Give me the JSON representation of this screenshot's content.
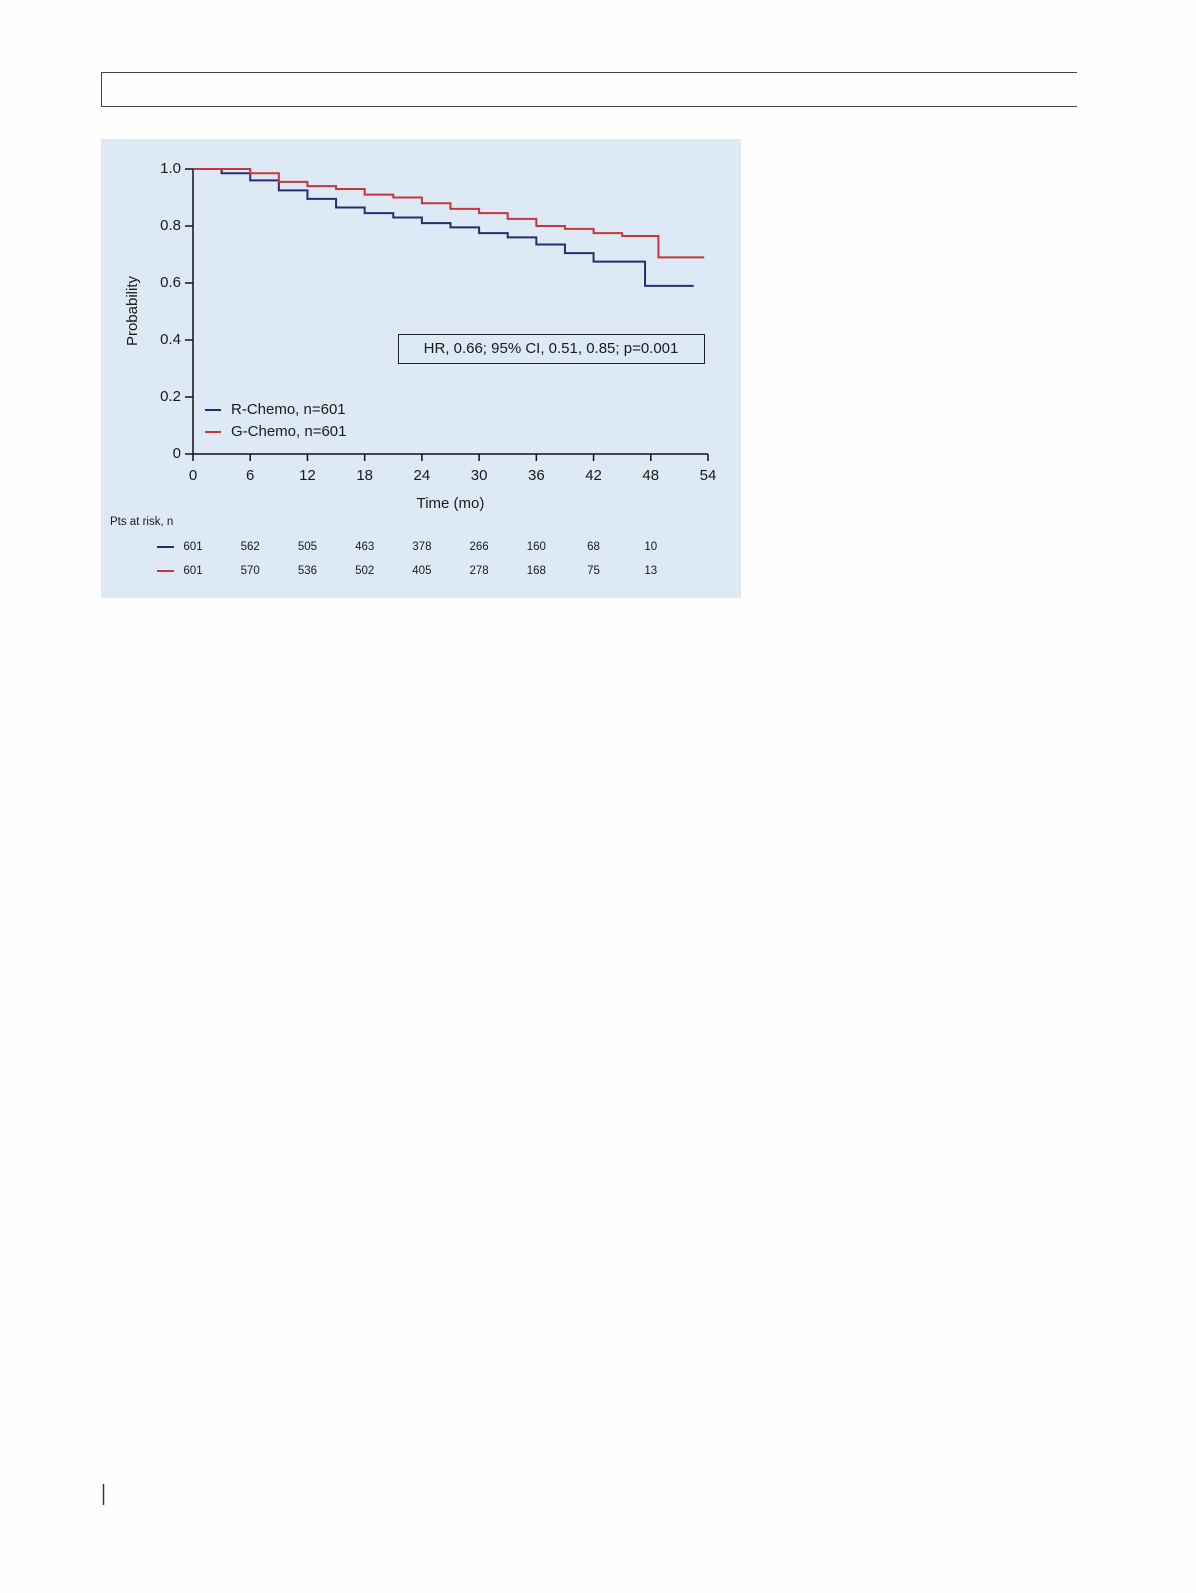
{
  "chart_data": {
    "type": "line",
    "step": true,
    "xlabel": "Time (mo)",
    "ylabel": "Probability",
    "annotation": "HR, 0.66; 95% CI, 0.51, 0.85; p=0.001",
    "xlim": [
      0,
      54
    ],
    "ylim": [
      0,
      1
    ],
    "xticks": [
      0,
      6,
      12,
      18,
      24,
      30,
      36,
      42,
      48,
      54
    ],
    "yticks": [
      0,
      0.2,
      0.4,
      0.6,
      0.8,
      {
        "value": 1,
        "label": "1.0"
      }
    ],
    "legend": "lower left",
    "series": [
      {
        "name": "R-Chemo, n=601",
        "color": "#2b2a6e",
        "x": [
          0,
          3,
          3,
          6,
          6,
          9,
          9,
          12,
          12,
          15,
          15,
          18,
          18,
          21,
          21,
          24,
          24,
          27,
          27,
          30,
          30,
          33,
          33,
          36,
          36,
          39,
          39,
          42,
          42,
          47.4,
          47.4,
          52.5
        ],
        "values": [
          1,
          1,
          0.985,
          0.985,
          0.96,
          0.96,
          0.925,
          0.925,
          0.895,
          0.895,
          0.865,
          0.865,
          0.845,
          0.845,
          0.83,
          0.83,
          0.81,
          0.81,
          0.795,
          0.795,
          0.775,
          0.775,
          0.76,
          0.76,
          0.735,
          0.735,
          0.705,
          0.705,
          0.675,
          0.675,
          0.59,
          0.59
        ]
      },
      {
        "name": "G-Chemo, n=601",
        "color": "#c8353a",
        "x": [
          0,
          6,
          6,
          9,
          9,
          12,
          12,
          15,
          15,
          18,
          18,
          21,
          21,
          24,
          24,
          27,
          27,
          30,
          30,
          33,
          33,
          36,
          36,
          39,
          39,
          42,
          42,
          45,
          45,
          48.8,
          48.8,
          53.6
        ],
        "values": [
          1,
          1,
          0.985,
          0.985,
          0.955,
          0.955,
          0.94,
          0.94,
          0.93,
          0.93,
          0.91,
          0.91,
          0.9,
          0.9,
          0.88,
          0.88,
          0.86,
          0.86,
          0.845,
          0.845,
          0.825,
          0.825,
          0.8,
          0.8,
          0.79,
          0.79,
          0.775,
          0.775,
          0.765,
          0.765,
          0.69,
          0.69
        ]
      }
    ],
    "at_risk": {
      "title": "Pts at risk, n",
      "rows": [
        [
          601,
          562,
          505,
          463,
          378,
          266,
          160,
          68,
          10
        ],
        [
          601,
          570,
          536,
          502,
          405,
          278,
          168,
          75,
          13
        ]
      ]
    }
  }
}
